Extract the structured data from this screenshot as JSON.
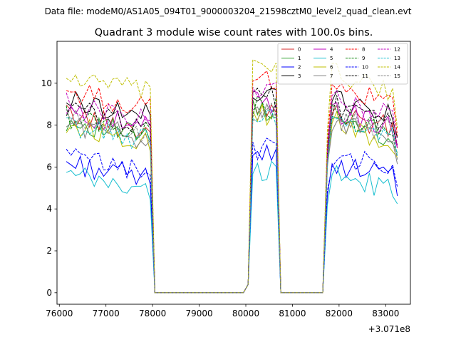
{
  "chart_data": {
    "type": "line",
    "suptitle": "Data file: modeM0/AS1A05_094T01_9000003204_21598cztM0_level2_quad_clean.evt",
    "title": "Quadrant 3 module wise count rates with 100.0s bins.",
    "xlabel": "",
    "ylabel": "",
    "x_offset_label": "+3.071e8",
    "xlim": [
      75950,
      83530
    ],
    "ylim": [
      -0.55,
      12.0
    ],
    "x_ticks": [
      76000,
      77000,
      78000,
      79000,
      80000,
      81000,
      82000,
      83000
    ],
    "x_tick_labels": [
      "76000",
      "77000",
      "78000",
      "79000",
      "80000",
      "81000",
      "82000",
      "83000"
    ],
    "y_ticks": [
      0,
      2,
      4,
      6,
      8,
      10
    ],
    "y_tick_labels": [
      "0",
      "2",
      "4",
      "6",
      "8",
      "10"
    ],
    "grid": false,
    "legend_position": "top-right",
    "segment_breaks": [
      {
        "x_from": 78100,
        "x_to": 80050
      },
      {
        "x_from": 80850,
        "x_to": 81750
      }
    ],
    "series": [
      {
        "name": "0",
        "color": "#d62728",
        "dash": "solid",
        "base": 8.5
      },
      {
        "name": "1",
        "color": "#2ca02c",
        "dash": "solid",
        "base": 8.2
      },
      {
        "name": "2",
        "color": "#0000ff",
        "dash": "solid",
        "base": 6.2
      },
      {
        "name": "3",
        "color": "#000000",
        "dash": "solid",
        "base": 9.2
      },
      {
        "name": "4",
        "color": "#bf00bf",
        "dash": "solid",
        "base": 8.6
      },
      {
        "name": "5",
        "color": "#17becf",
        "dash": "solid",
        "base": 5.6
      },
      {
        "name": "6",
        "color": "#bfbf00",
        "dash": "solid",
        "base": 8.0
      },
      {
        "name": "7",
        "color": "#808080",
        "dash": "solid",
        "base": 8.1
      },
      {
        "name": "8",
        "color": "#ff0000",
        "dash": "dashed",
        "base": 9.6
      },
      {
        "name": "9",
        "color": "#008000",
        "dash": "dashed",
        "base": 8.4
      },
      {
        "name": "10",
        "color": "#0000ff",
        "dash": "dashed",
        "base": 6.5
      },
      {
        "name": "11",
        "color": "#000000",
        "dash": "dashed",
        "base": 8.8
      },
      {
        "name": "12",
        "color": "#bf00bf",
        "dash": "dashed",
        "base": 9.0
      },
      {
        "name": "13",
        "color": "#17becf",
        "dash": "dashed",
        "base": 8.0
      },
      {
        "name": "14",
        "color": "#bfbf00",
        "dash": "dashed",
        "base": 10.3
      },
      {
        "name": "15",
        "color": "#808080",
        "dash": "dashed",
        "base": 8.3
      }
    ]
  }
}
